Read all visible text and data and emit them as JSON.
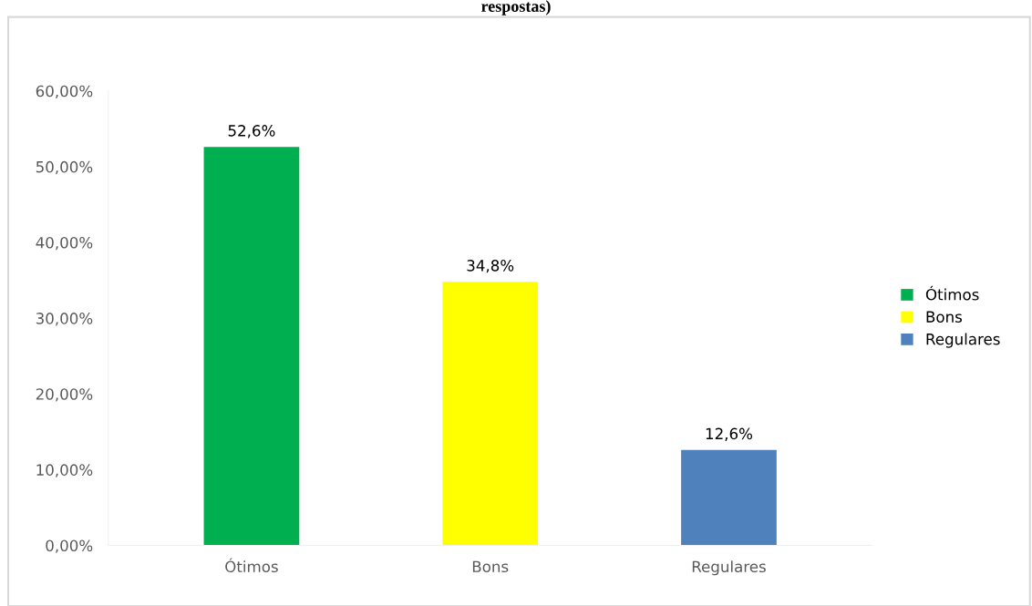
{
  "chart_data": {
    "type": "bar",
    "title": "respostas)",
    "categories": [
      "Ótimos",
      "Bons",
      "Regulares"
    ],
    "series": [
      {
        "name": "Ótimos",
        "color": "#00b050",
        "values": [
          52.6,
          null,
          null
        ],
        "value_labels": [
          "52,6%",
          null,
          null
        ]
      },
      {
        "name": "Bons",
        "color": "#ffff00",
        "values": [
          null,
          34.8,
          null
        ],
        "value_labels": [
          null,
          "34,8%",
          null
        ]
      },
      {
        "name": "Regulares",
        "color": "#4f81bd",
        "values": [
          null,
          null,
          12.6
        ],
        "value_labels": [
          null,
          null,
          "12,6%"
        ]
      }
    ],
    "ylim": [
      0,
      60
    ],
    "yticks": [
      {
        "value": 0,
        "label": "0,00%"
      },
      {
        "value": 10,
        "label": "10,00%"
      },
      {
        "value": 20,
        "label": "20,00%"
      },
      {
        "value": 30,
        "label": "30,00%"
      },
      {
        "value": 40,
        "label": "40,00%"
      },
      {
        "value": 50,
        "label": "50,00%"
      },
      {
        "value": 60,
        "label": "60,00%"
      }
    ],
    "grid": false,
    "legend": "right"
  }
}
